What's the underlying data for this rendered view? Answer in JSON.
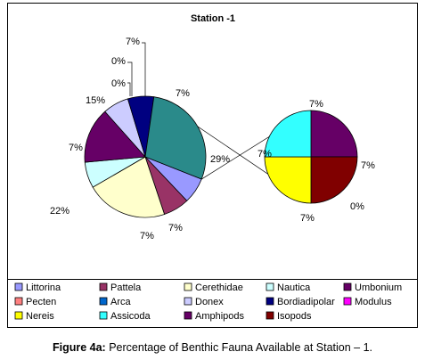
{
  "chart_data": {
    "type": "pie",
    "variant": "pie-of-pie",
    "title": "Station -1",
    "colors_main": [
      "#9999ff",
      "#993366",
      "#ffffcc",
      "#ccffff",
      "#660066",
      "#ff8080",
      "#0066cc",
      "#ccccff",
      "#000080",
      "#ff00ff"
    ],
    "main_pie": {
      "slices": [
        {
          "label": "7%",
          "value": 7,
          "color": "#9999ff"
        },
        {
          "label": "7%",
          "value": 7,
          "color": "#993366"
        },
        {
          "label": "22%",
          "value": 22,
          "color": "#ffffcc"
        },
        {
          "label": "7%",
          "value": 7,
          "color": "#ccffff"
        },
        {
          "label": "15%",
          "value": 15,
          "color": "#660066"
        },
        {
          "label": "0%",
          "value": 0,
          "color": "#ff8080"
        },
        {
          "label": "0%",
          "value": 0,
          "color": "#0066cc"
        },
        {
          "label": "7%",
          "value": 7,
          "color": "#ccccff"
        },
        {
          "label": "7%",
          "value": 7,
          "color": "#000080"
        },
        {
          "label": "29%",
          "value": 29,
          "color": "#2a8a8a"
        }
      ]
    },
    "secondary_pie": {
      "slices": [
        {
          "label": "7%",
          "value": 7,
          "color": "#660066"
        },
        {
          "label": "7%",
          "value": 7,
          "color": "#800000"
        },
        {
          "label": "0%",
          "value": 0,
          "color": "#ff00ff"
        },
        {
          "label": "7%",
          "value": 7,
          "color": "#ffff00"
        },
        {
          "label": "7%",
          "value": 7,
          "color": "#33ffff"
        }
      ]
    },
    "legend_placement": "bottom",
    "legend": [
      {
        "label": "Littorina",
        "color": "#9999ff"
      },
      {
        "label": "Pattela",
        "color": "#993366"
      },
      {
        "label": "Cerethidae",
        "color": "#ffffcc"
      },
      {
        "label": "Nautica",
        "color": "#ccffff"
      },
      {
        "label": "Umbonium",
        "color": "#660066"
      },
      {
        "label": "Pecten",
        "color": "#ff8080"
      },
      {
        "label": "Arca",
        "color": "#0066cc"
      },
      {
        "label": "Donex",
        "color": "#ccccff"
      },
      {
        "label": "Bordiadipolar",
        "color": "#000080"
      },
      {
        "label": "Modulus",
        "color": "#ff00ff"
      },
      {
        "label": "Nereis",
        "color": "#ffff00"
      },
      {
        "label": "Assicoda",
        "color": "#33ffff"
      },
      {
        "label": "Amphipods",
        "color": "#660066"
      },
      {
        "label": "Isopods",
        "color": "#800000"
      }
    ]
  },
  "caption": {
    "label": "Figure 4a:",
    "text": " Percentage of Benthic Fauna Available at Station – 1."
  }
}
